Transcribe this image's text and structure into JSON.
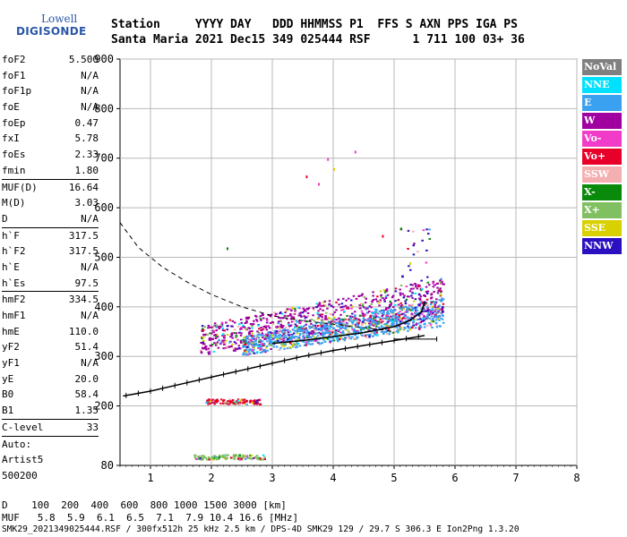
{
  "logo": {
    "line1": "Lowell",
    "line2": "DIGISONDE"
  },
  "header": {
    "row1": "Station     YYYY DAY   DDD HHMMSS P1  FFS S AXN PPS IGA PS",
    "row2": "Santa Maria 2021 Dec15 349 025444 RSF      1 711 100 03+ 36"
  },
  "params": [
    {
      "name": "foF2",
      "value": "5.500"
    },
    {
      "name": "foF1",
      "value": "N/A"
    },
    {
      "name": "foF1p",
      "value": "N/A"
    },
    {
      "name": "foE",
      "value": "N/A"
    },
    {
      "name": "foEp",
      "value": "0.47"
    },
    {
      "name": "fxI",
      "value": "5.78"
    },
    {
      "name": "foEs",
      "value": "2.33"
    },
    {
      "name": "fmin",
      "value": "1.80"
    },
    {
      "sep": true
    },
    {
      "name": "MUF(D)",
      "value": "16.64"
    },
    {
      "name": "M(D)",
      "value": "3.03"
    },
    {
      "name": "D",
      "value": "N/A"
    },
    {
      "sep": true
    },
    {
      "name": "h`F",
      "value": "317.5"
    },
    {
      "name": "h`F2",
      "value": "317.5"
    },
    {
      "name": "h`E",
      "value": "N/A"
    },
    {
      "name": "h`Es",
      "value": "97.5"
    },
    {
      "sep": true
    },
    {
      "name": "hmF2",
      "value": "334.5"
    },
    {
      "name": "hmF1",
      "value": "N/A"
    },
    {
      "name": "hmE",
      "value": "110.0"
    },
    {
      "name": "yF2",
      "value": "51.4"
    },
    {
      "name": "yF1",
      "value": "N/A"
    },
    {
      "name": "yE",
      "value": "20.0"
    },
    {
      "name": "B0",
      "value": "58.4"
    },
    {
      "name": "B1",
      "value": "1.35"
    },
    {
      "sep": true
    },
    {
      "name": "C-level",
      "value": "33"
    },
    {
      "sep": true
    },
    {
      "name": "Auto:",
      "value": ""
    },
    {
      "name": "Artist5",
      "value": ""
    },
    {
      "name": "500200",
      "value": ""
    }
  ],
  "legend": [
    {
      "label": "NoVal",
      "color": "#808080"
    },
    {
      "label": "NNE",
      "color": "#00e0ff"
    },
    {
      "label": "E",
      "color": "#3aa0f0"
    },
    {
      "label": "W",
      "color": "#a000a0"
    },
    {
      "label": "Vo-",
      "color": "#f03cc8"
    },
    {
      "label": "Vo+",
      "color": "#e8002a"
    },
    {
      "label": "SSW",
      "color": "#f4b0b0"
    },
    {
      "label": "X-",
      "color": "#0a8a0a"
    },
    {
      "label": "X+",
      "color": "#80c060"
    },
    {
      "label": "SSE",
      "color": "#d8d000"
    },
    {
      "label": "NNW",
      "color": "#2a10c0"
    }
  ],
  "bottom": {
    "d_row": "D    100  200  400  600  800 1000 1500 3000 [km]",
    "muf_row": "MUF   5.8  5.9  6.1  6.5  7.1  7.9 10.4 16.6 [MHz]",
    "file_row": "SMK29_2021349025444.RSF / 300fx512h 25 kHz 2.5 km / DPS-4D SMK29 129 / 29.7 S 306.3 E Ion2Png 1.3.20"
  },
  "chart_data": {
    "type": "scatter",
    "title": "",
    "xlabel": "",
    "ylabel": "",
    "xlim": [
      0.5,
      8.0
    ],
    "ylim": [
      80,
      900
    ],
    "xticks": [
      1,
      2,
      3,
      4,
      5,
      6,
      7,
      8
    ],
    "yticks": [
      80,
      200,
      300,
      400,
      500,
      600,
      700,
      800,
      900
    ],
    "grid": true,
    "legend_position": "right",
    "traces": {
      "virtual_height_trace": {
        "x": [
          0.55,
          1.0,
          1.5,
          2.0,
          2.5,
          3.0,
          3.5,
          4.0,
          4.5,
          5.0,
          5.3,
          5.5
        ],
        "y": [
          220,
          230,
          244,
          258,
          272,
          286,
          300,
          312,
          322,
          332,
          338,
          342
        ]
      },
      "profile_trace": {
        "x": [
          3.0,
          3.5,
          4.0,
          4.5,
          5.0,
          5.25,
          5.45,
          5.5
        ],
        "y": [
          326,
          332,
          340,
          348,
          360,
          372,
          390,
          410
        ]
      },
      "profile_dashed": {
        "x": [
          0.5,
          0.8,
          1.2,
          1.6,
          2.0,
          2.5,
          3.0,
          3.5,
          4.0,
          4.5,
          5.0
        ],
        "y": [
          570,
          520,
          480,
          450,
          425,
          400,
          382,
          372,
          365,
          358,
          350
        ]
      }
    },
    "echo_clusters": [
      {
        "name": "F-layer O-trace",
        "x_range": [
          1.8,
          5.8
        ],
        "y_range": [
          300,
          420
        ],
        "color": "#a000a0"
      },
      {
        "name": "F-layer E",
        "x_range": [
          2.5,
          5.8
        ],
        "y_range": [
          290,
          370
        ],
        "color": "#3aa0f0"
      },
      {
        "name": "Es 200km",
        "x_range": [
          1.9,
          2.8
        ],
        "y_range": [
          205,
          215
        ],
        "color": "#e8002a"
      },
      {
        "name": "Es 100km",
        "x_range": [
          1.7,
          2.9
        ],
        "y_range": [
          93,
          103
        ],
        "color": "#80c060"
      },
      {
        "name": "Spread high",
        "x_range": [
          5.0,
          5.6
        ],
        "y_range": [
          360,
          560
        ],
        "color": "#2a10c0"
      }
    ]
  }
}
